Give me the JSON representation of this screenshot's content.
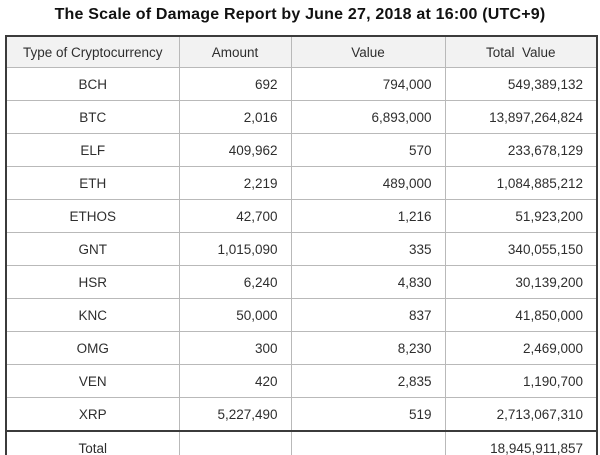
{
  "title": "The Scale of Damage Report by June 27, 2018 at 16:00 (UTC+9)",
  "table": {
    "headers": {
      "currency": "Type of Cryptocurrency",
      "amount": "Amount",
      "value": "Value",
      "total": "Total  Value"
    },
    "rows": [
      {
        "currency": "BCH",
        "amount": "692",
        "value": "794,000",
        "total": "549,389,132"
      },
      {
        "currency": "BTC",
        "amount": "2,016",
        "value": "6,893,000",
        "total": "13,897,264,824"
      },
      {
        "currency": "ELF",
        "amount": "409,962",
        "value": "570",
        "total": "233,678,129"
      },
      {
        "currency": "ETH",
        "amount": "2,219",
        "value": "489,000",
        "total": "1,084,885,212"
      },
      {
        "currency": "ETHOS",
        "amount": "42,700",
        "value": "1,216",
        "total": "51,923,200"
      },
      {
        "currency": "GNT",
        "amount": "1,015,090",
        "value": "335",
        "total": "340,055,150"
      },
      {
        "currency": "HSR",
        "amount": "6,240",
        "value": "4,830",
        "total": "30,139,200"
      },
      {
        "currency": "KNC",
        "amount": "50,000",
        "value": "837",
        "total": "41,850,000"
      },
      {
        "currency": "OMG",
        "amount": "300",
        "value": "8,230",
        "total": "2,469,000"
      },
      {
        "currency": "VEN",
        "amount": "420",
        "value": "2,835",
        "total": "1,190,700"
      },
      {
        "currency": "XRP",
        "amount": "5,227,490",
        "value": "519",
        "total": "2,713,067,310"
      }
    ],
    "total_row": {
      "label": "Total",
      "amount": "",
      "value": "",
      "total": "18,945,911,857"
    }
  },
  "colors": {
    "outer_border": "#3b3b3b",
    "grid_line": "#b9b9b9",
    "header_bg": "#f2f2f2",
    "text": "#2e2e2e"
  },
  "chart_data": {
    "type": "table",
    "title": "The Scale of Damage Report by June 27, 2018 at 16:00 (UTC+9)",
    "columns": [
      "Type of Cryptocurrency",
      "Amount",
      "Value",
      "Total Value"
    ],
    "rows": [
      [
        "BCH",
        692,
        794000,
        549389132
      ],
      [
        "BTC",
        2016,
        6893000,
        13897264824
      ],
      [
        "ELF",
        409962,
        570,
        233678129
      ],
      [
        "ETH",
        2219,
        489000,
        1084885212
      ],
      [
        "ETHOS",
        42700,
        1216,
        51923200
      ],
      [
        "GNT",
        1015090,
        335,
        340055150
      ],
      [
        "HSR",
        6240,
        4830,
        30139200
      ],
      [
        "KNC",
        50000,
        837,
        41850000
      ],
      [
        "OMG",
        300,
        8230,
        2469000
      ],
      [
        "VEN",
        420,
        2835,
        1190700
      ],
      [
        "XRP",
        5227490,
        519,
        2713067310
      ]
    ],
    "total_row": [
      "Total",
      null,
      null,
      18945911857
    ]
  }
}
